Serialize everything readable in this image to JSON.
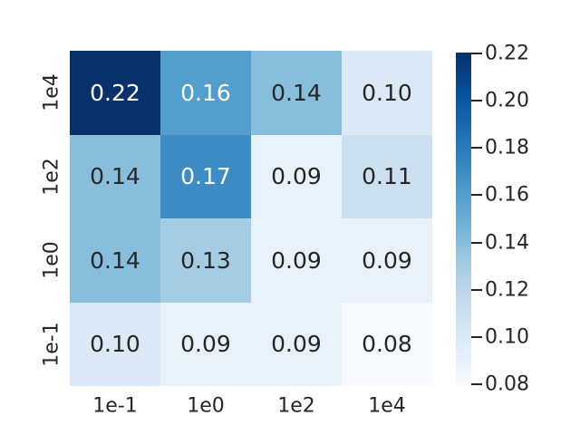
{
  "figure": {
    "background": "#ffffff",
    "title": ""
  },
  "chart_data": {
    "type": "heatmap",
    "title": "",
    "xlabel": "",
    "ylabel": "",
    "x_categories": [
      "1e-1",
      "1e0",
      "1e2",
      "1e4"
    ],
    "y_categories": [
      "1e4",
      "1e2",
      "1e0",
      "1e-1"
    ],
    "values": [
      [
        0.22,
        0.16,
        0.14,
        0.1
      ],
      [
        0.14,
        0.17,
        0.09,
        0.11
      ],
      [
        0.14,
        0.13,
        0.09,
        0.09
      ],
      [
        0.1,
        0.09,
        0.09,
        0.08
      ]
    ],
    "value_format": ".2f",
    "vmin": 0.08,
    "vmax": 0.22,
    "colormap": "Blues",
    "palette": [
      "#f7fbff",
      "#deebf7",
      "#c6dbef",
      "#9ecae1",
      "#6baed6",
      "#4292c6",
      "#2171b5",
      "#08519c",
      "#08306b"
    ],
    "annotation_color_dark": "#262626",
    "annotation_color_light": "#ffffff",
    "tick_label_color": "#262626",
    "grid": false,
    "legend": null,
    "colorbar": {
      "position": "right",
      "ticks": [
        "0.22",
        "0.20",
        "0.18",
        "0.16",
        "0.14",
        "0.12",
        "0.10",
        "0.08"
      ]
    }
  }
}
